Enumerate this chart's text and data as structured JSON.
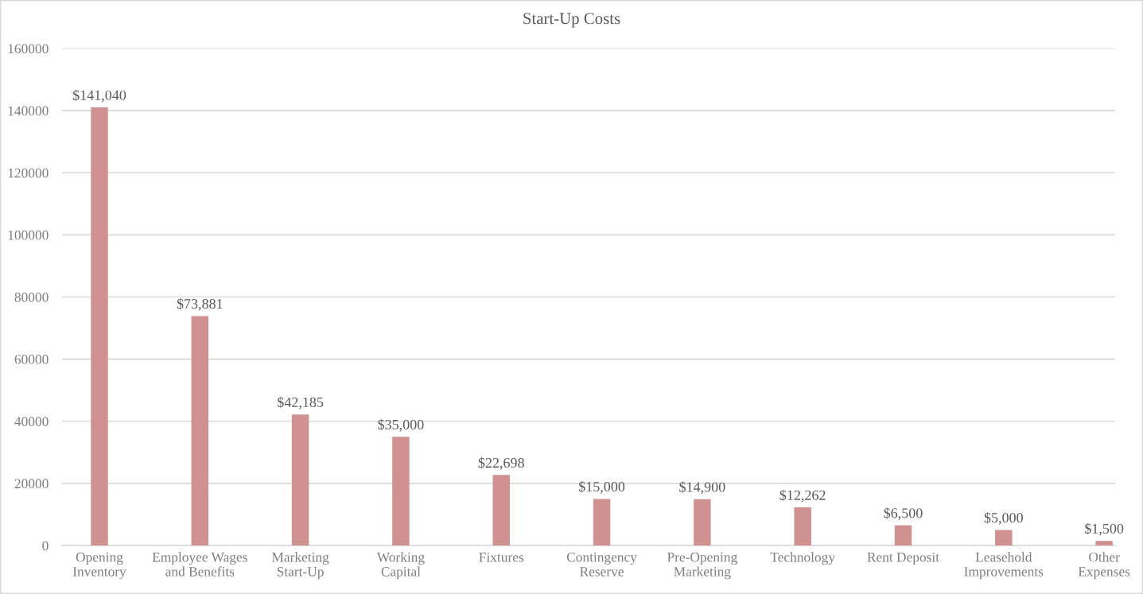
{
  "chart_data": {
    "type": "bar",
    "title": "Start-Up Costs",
    "categories": [
      "Opening Inventory",
      "Employee Wages and Benefits",
      "Marketing Start-Up",
      "Working Capital",
      "Fixtures",
      "Contingency Reserve",
      "Pre-Opening Marketing",
      "Technology",
      "Rent Deposit",
      "Leasehold Improvements",
      "Other Expenses"
    ],
    "values": [
      141040,
      73881,
      42185,
      35000,
      22698,
      15000,
      14900,
      12262,
      6500,
      5000,
      1500
    ],
    "value_labels": [
      "$141,040",
      "$73,881",
      "$42,185",
      "$35,000",
      "$22,698",
      "$15,000",
      "$14,900",
      "$12,262",
      "$6,500",
      "$5,000",
      "$1,500"
    ],
    "color": "#d09290",
    "ylim": [
      0,
      160000
    ],
    "yticks": [
      0,
      20000,
      40000,
      60000,
      80000,
      100000,
      120000,
      140000,
      160000
    ],
    "grid": "y"
  }
}
